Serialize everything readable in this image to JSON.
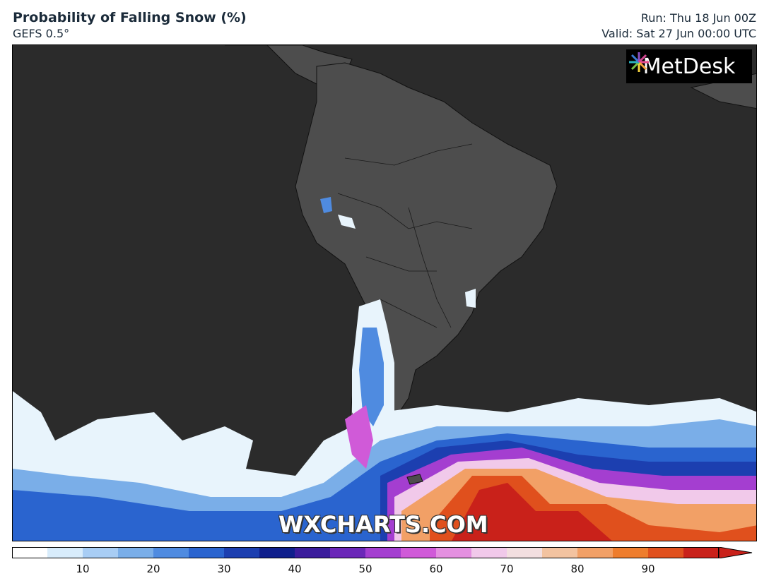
{
  "header": {
    "title": "Probability of Falling Snow (%)",
    "model": "GEFS 0.5°",
    "run": "Run: Thu 18 Jun 00Z",
    "valid": "Valid: Sat 27 Jun 00:00 UTC"
  },
  "logo": {
    "text": "MetDesk",
    "icon": "metdesk-burst-icon"
  },
  "watermark": "WXCHARTS.COM",
  "map": {
    "region": "South America / Southern Ocean",
    "ocean_color": "#2b2b2b",
    "land_color": "#4d4d4d"
  },
  "colorbar": {
    "colors": [
      "#ffffff",
      "#d8ecfb",
      "#a8cdf4",
      "#7aaee8",
      "#4f8be0",
      "#2a64cf",
      "#1c3fb0",
      "#0f1f8c",
      "#3b1c9c",
      "#6b27b8",
      "#a43ed0",
      "#d05ad8",
      "#e490e0",
      "#f1c9ea",
      "#f3dfe0",
      "#f3c3a0",
      "#f2a066",
      "#ee7d2d",
      "#e0501d",
      "#c9211a"
    ],
    "tick_labels": [
      "10",
      "20",
      "30",
      "40",
      "50",
      "60",
      "70",
      "80",
      "90"
    ]
  }
}
